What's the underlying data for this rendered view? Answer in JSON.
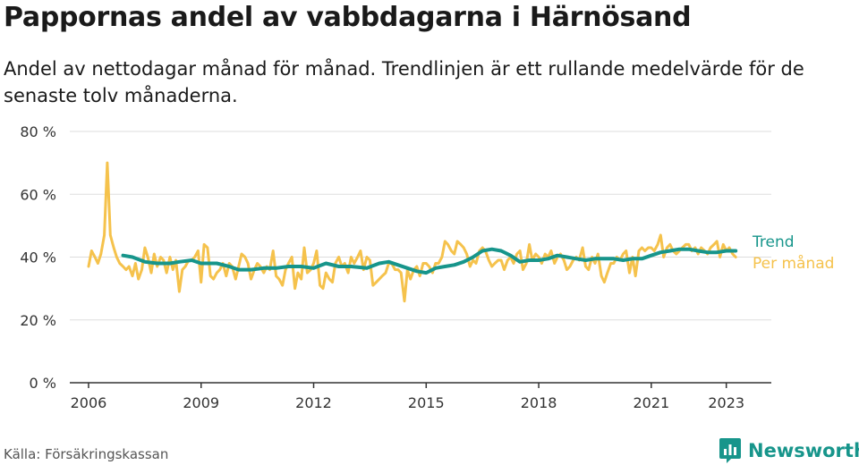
{
  "title": "Pappornas andel av vabbdagarna i Härnösand",
  "subtitle": "Andel av nettodagar månad för månad. Trendlinjen är ett rullande medelvärde för de senaste tolv månaderna.",
  "source": "Källa: Försäkringskassan",
  "brand": {
    "name": "Newsworthy",
    "icon": "newsworthy-logo-icon",
    "color": "#17958b"
  },
  "chart_data": {
    "type": "line",
    "title": "Pappornas andel av vabbdagarna i Härnösand",
    "xlabel": "",
    "ylabel": "",
    "xlim": [
      2005.5,
      2024.2
    ],
    "ylim": [
      0,
      80
    ],
    "x_ticks": [
      2006,
      2009,
      2012,
      2015,
      2018,
      2021,
      2023
    ],
    "x_tick_labels": [
      "2006",
      "2009",
      "2012",
      "2015",
      "2018",
      "2021",
      "2023"
    ],
    "y_ticks": [
      0,
      20,
      40,
      60,
      80
    ],
    "y_tick_labels": [
      "0 %",
      "20 %",
      "40 %",
      "60 %",
      "80 %"
    ],
    "grid": true,
    "legend": "right, at line ends",
    "series": [
      {
        "name": "Per månad",
        "color": "#f5c24c",
        "x": [
          2006.0,
          2006.08,
          2006.17,
          2006.25,
          2006.33,
          2006.42,
          2006.5,
          2006.58,
          2006.67,
          2006.75,
          2006.83,
          2006.92,
          2007.0,
          2007.08,
          2007.17,
          2007.25,
          2007.33,
          2007.42,
          2007.5,
          2007.58,
          2007.67,
          2007.75,
          2007.83,
          2007.92,
          2008.0,
          2008.08,
          2008.17,
          2008.25,
          2008.33,
          2008.42,
          2008.5,
          2008.58,
          2008.67,
          2008.75,
          2008.83,
          2008.92,
          2009.0,
          2009.08,
          2009.17,
          2009.25,
          2009.33,
          2009.42,
          2009.5,
          2009.58,
          2009.67,
          2009.75,
          2009.83,
          2009.92,
          2010.0,
          2010.08,
          2010.17,
          2010.25,
          2010.33,
          2010.42,
          2010.5,
          2010.58,
          2010.67,
          2010.75,
          2010.83,
          2010.92,
          2011.0,
          2011.08,
          2011.17,
          2011.25,
          2011.33,
          2011.42,
          2011.5,
          2011.58,
          2011.67,
          2011.75,
          2011.83,
          2011.92,
          2012.0,
          2012.08,
          2012.17,
          2012.25,
          2012.33,
          2012.42,
          2012.5,
          2012.58,
          2012.67,
          2012.75,
          2012.83,
          2012.92,
          2013.0,
          2013.08,
          2013.17,
          2013.25,
          2013.33,
          2013.42,
          2013.5,
          2013.58,
          2013.67,
          2013.75,
          2013.83,
          2013.92,
          2014.0,
          2014.08,
          2014.17,
          2014.25,
          2014.33,
          2014.42,
          2014.5,
          2014.58,
          2014.67,
          2014.75,
          2014.83,
          2014.92,
          2015.0,
          2015.08,
          2015.17,
          2015.25,
          2015.33,
          2015.42,
          2015.5,
          2015.58,
          2015.67,
          2015.75,
          2015.83,
          2015.92,
          2016.0,
          2016.08,
          2016.17,
          2016.25,
          2016.33,
          2016.42,
          2016.5,
          2016.58,
          2016.67,
          2016.75,
          2016.83,
          2016.92,
          2017.0,
          2017.08,
          2017.17,
          2017.25,
          2017.33,
          2017.42,
          2017.5,
          2017.58,
          2017.67,
          2017.75,
          2017.83,
          2017.92,
          2018.0,
          2018.08,
          2018.17,
          2018.25,
          2018.33,
          2018.42,
          2018.5,
          2018.58,
          2018.67,
          2018.75,
          2018.83,
          2018.92,
          2019.0,
          2019.08,
          2019.17,
          2019.25,
          2019.33,
          2019.42,
          2019.5,
          2019.58,
          2019.67,
          2019.75,
          2019.83,
          2019.92,
          2020.0,
          2020.08,
          2020.17,
          2020.25,
          2020.33,
          2020.42,
          2020.5,
          2020.58,
          2020.67,
          2020.75,
          2020.83,
          2020.92,
          2021.0,
          2021.08,
          2021.17,
          2021.25,
          2021.33,
          2021.42,
          2021.5,
          2021.58,
          2021.67,
          2021.75,
          2021.83,
          2021.92,
          2022.0,
          2022.08,
          2022.17,
          2022.25,
          2022.33,
          2022.42,
          2022.5,
          2022.58,
          2022.67,
          2022.75,
          2022.83,
          2022.92,
          2023.0,
          2023.08,
          2023.17,
          2023.25
        ],
        "values": [
          37,
          42,
          40,
          38,
          41,
          47,
          70,
          47,
          43,
          40,
          38,
          37,
          36,
          37,
          34,
          38,
          33,
          36,
          43,
          40,
          35,
          41,
          37,
          40,
          39,
          35,
          40,
          36,
          39,
          29,
          36,
          37,
          39,
          39,
          40,
          42,
          32,
          44,
          43,
          34,
          33,
          35,
          36,
          38,
          34,
          38,
          37,
          33,
          37,
          41,
          40,
          38,
          33,
          36,
          38,
          37,
          35,
          37,
          36,
          42,
          34,
          33,
          31,
          36,
          38,
          40,
          30,
          35,
          33,
          43,
          35,
          36,
          38,
          42,
          31,
          30,
          35,
          33,
          32,
          38,
          40,
          37,
          38,
          35,
          40,
          38,
          40,
          42,
          36,
          40,
          39,
          31,
          32,
          33,
          34,
          35,
          38,
          38,
          36,
          36,
          35,
          26,
          36,
          33,
          36,
          37,
          34,
          38,
          38,
          37,
          35,
          38,
          38,
          40,
          45,
          44,
          42,
          41,
          45,
          44,
          43,
          41,
          37,
          39,
          38,
          42,
          43,
          42,
          39,
          37,
          38,
          39,
          39,
          36,
          39,
          40,
          38,
          41,
          42,
          36,
          38,
          44,
          39,
          41,
          40,
          38,
          41,
          40,
          42,
          38,
          40,
          41,
          39,
          36,
          37,
          39,
          40,
          39,
          43,
          37,
          36,
          40,
          38,
          41,
          34,
          32,
          35,
          38,
          38,
          40,
          39,
          41,
          42,
          35,
          40,
          34,
          42,
          43,
          42,
          43,
          43,
          42,
          44,
          47,
          40,
          43,
          44,
          42,
          41,
          42,
          43,
          44,
          44,
          42,
          43,
          41,
          43,
          42,
          41,
          43,
          44,
          45,
          40,
          44,
          42,
          43,
          41,
          40
        ]
      },
      {
        "name": "Trend",
        "color": "#17958b",
        "x": [
          2006.92,
          2007.17,
          2007.5,
          2007.83,
          2008.17,
          2008.42,
          2008.75,
          2009.0,
          2009.42,
          2009.75,
          2010.0,
          2010.33,
          2010.67,
          2011.0,
          2011.33,
          2011.67,
          2012.0,
          2012.33,
          2012.67,
          2013.0,
          2013.42,
          2013.75,
          2014.0,
          2014.25,
          2014.5,
          2014.75,
          2015.0,
          2015.25,
          2015.5,
          2015.75,
          2016.0,
          2016.25,
          2016.5,
          2016.75,
          2017.0,
          2017.25,
          2017.5,
          2017.75,
          2018.0,
          2018.25,
          2018.5,
          2018.75,
          2019.0,
          2019.25,
          2019.5,
          2019.75,
          2020.0,
          2020.25,
          2020.5,
          2020.75,
          2021.0,
          2021.25,
          2021.5,
          2021.75,
          2022.0,
          2022.25,
          2022.5,
          2022.75,
          2023.0,
          2023.25
        ],
        "values": [
          40.5,
          40,
          38.5,
          38,
          38,
          38.5,
          39,
          38,
          38,
          37,
          36,
          36,
          36.5,
          36.5,
          37,
          37,
          36.5,
          38,
          37,
          37,
          36.5,
          38,
          38.5,
          37.5,
          36.5,
          35.5,
          35,
          36.5,
          37,
          37.5,
          38.5,
          40,
          42,
          42.5,
          42,
          40.5,
          38.5,
          39,
          39,
          39.5,
          40.5,
          40,
          39.5,
          39,
          39.5,
          39.5,
          39.5,
          39,
          39.5,
          39.5,
          40.5,
          41.5,
          42,
          42.5,
          42.5,
          42,
          41.5,
          41.5,
          42,
          42
        ]
      }
    ]
  }
}
